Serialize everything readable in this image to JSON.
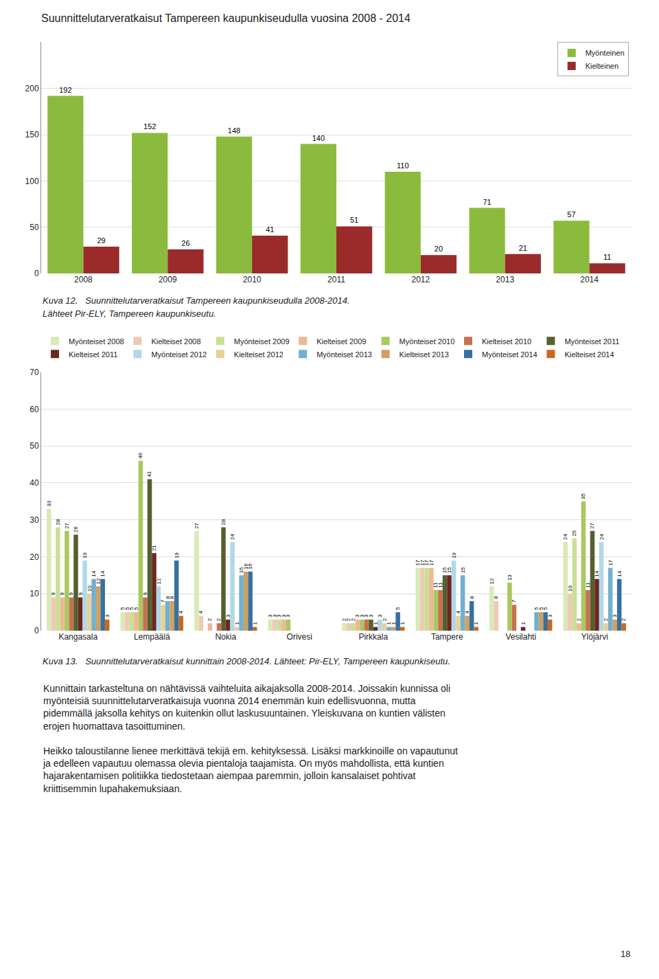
{
  "chart_data": [
    {
      "type": "bar",
      "title": "Suunnittelutarveratkaisut Tampereen kaupunkiseudulla vuosina 2008 - 2014",
      "categories": [
        "2008",
        "2009",
        "2010",
        "2011",
        "2012",
        "2013",
        "2014"
      ],
      "series": [
        {
          "name": "Myönteinen",
          "color": "#8BBB3C",
          "values": [
            192,
            152,
            148,
            140,
            110,
            71,
            57
          ]
        },
        {
          "name": "Kielteinen",
          "color": "#9B2B2B",
          "values": [
            29,
            26,
            41,
            51,
            20,
            21,
            11
          ]
        }
      ],
      "ylim": [
        0,
        250
      ],
      "yticks": [
        0,
        50,
        100,
        150,
        200
      ],
      "grid": true,
      "legend": "upper right",
      "data_labels": true,
      "annotations": [
        "Kuva 12.   Suunnittelutarveratkaisut Tampereen kaupunkiseudulla 2008-2014.",
        "Lähteet Pir-ELY, Tampereen kaupunkiseutu."
      ]
    },
    {
      "type": "bar",
      "categories": [
        "Kangasala",
        "Lempäälä",
        "Nokia",
        "Orivesi",
        "Pirkkala",
        "Tampere",
        "Vesilahti",
        "Ylöjärvi"
      ],
      "series": [
        {
          "name": "Myönteiset 2008",
          "color": "#D8EAB5",
          "values": [
            33,
            5,
            27,
            3,
            2,
            17,
            12,
            24
          ],
          "value_labels": [
            "33",
            "5",
            "27",
            "3",
            "2",
            "17",
            "12",
            "24"
          ]
        },
        {
          "name": "Kielteiset 2008",
          "color": "#F0C8B5",
          "values": [
            9,
            5,
            4,
            3,
            2,
            17,
            8,
            10
          ],
          "value_labels": [
            "9",
            "5",
            "4",
            "3",
            "2",
            "17",
            "8",
            "10"
          ]
        },
        {
          "name": "Myönteiset 2009",
          "color": "#C8E095",
          "values": [
            28,
            5,
            0,
            3,
            2,
            17,
            0,
            25
          ],
          "value_labels": [
            "28",
            "5",
            null,
            "3",
            "2",
            "17",
            null,
            "25"
          ]
        },
        {
          "name": "Kielteiset 2009",
          "color": "#EEB895",
          "values": [
            9,
            5,
            2,
            3,
            3,
            17,
            0,
            2
          ],
          "value_labels": [
            "9",
            "5",
            "2",
            "3",
            "3",
            "17",
            null,
            "2"
          ]
        },
        {
          "name": "Myönteiset 2010",
          "color": "#A8C860",
          "values": [
            27,
            46,
            0,
            3,
            3,
            11,
            13,
            35
          ],
          "value_labels": [
            "27",
            "46",
            null,
            "3",
            "3",
            "11",
            "13",
            "35"
          ]
        },
        {
          "name": "Kielteiset 2010",
          "color": "#C87050",
          "values": [
            9,
            9,
            2,
            0,
            3,
            11,
            7,
            11
          ],
          "value_labels": [
            "9",
            "9",
            "2",
            null,
            "3",
            "11",
            "7",
            "11"
          ]
        },
        {
          "name": "Myönteiset 2011",
          "color": "#556030",
          "values": [
            26,
            41,
            28,
            0,
            3,
            15,
            0,
            27
          ],
          "value_labels": [
            "26",
            "41",
            "28",
            null,
            "3",
            "15",
            null,
            "27"
          ]
        },
        {
          "name": "Kielteiset 2011",
          "color": "#6B2820",
          "values": [
            9,
            21,
            3,
            0,
            1,
            15,
            1,
            14
          ],
          "value_labels": [
            "9",
            "21",
            "3",
            null,
            "1",
            "15",
            "1",
            "14"
          ]
        },
        {
          "name": "Myönteiset 2012",
          "color": "#B0D8E8",
          "values": [
            19,
            12,
            24,
            0,
            3,
            19,
            0,
            24
          ],
          "value_labels": [
            "19",
            "12",
            "24",
            null,
            "3",
            "19",
            null,
            "24"
          ]
        },
        {
          "name": "Kielteiset 2012",
          "color": "#E8D098",
          "values": [
            10,
            7,
            1,
            0,
            2,
            4,
            0,
            2
          ],
          "value_labels": [
            "10",
            "7",
            "1",
            null,
            "2",
            "4",
            null,
            "2"
          ]
        },
        {
          "name": "Myönteiset 2013",
          "color": "#70B0D0",
          "values": [
            14,
            8,
            15,
            0,
            1,
            15,
            5,
            17
          ],
          "value_labels": [
            "14",
            "8",
            "15",
            null,
            "1",
            "15",
            "5",
            "17"
          ]
        },
        {
          "name": "Kielteiset 2013",
          "color": "#D0A060",
          "values": [
            12,
            8,
            16,
            0,
            1,
            4,
            5,
            3
          ],
          "value_labels": [
            "12",
            "8",
            "16",
            null,
            "1",
            "4",
            "5",
            "3"
          ]
        },
        {
          "name": "Myönteiset 2014",
          "color": "#3870A0",
          "values": [
            14,
            19,
            16,
            0,
            5,
            8,
            5,
            14
          ],
          "value_labels": [
            "14",
            "19",
            "16",
            null,
            "5",
            "8",
            "5",
            "14"
          ]
        },
        {
          "name": "Kielteiset 2014",
          "color": "#C86820",
          "values": [
            3,
            4,
            1,
            0,
            1,
            1,
            3,
            2
          ],
          "value_labels": [
            "3",
            "4",
            "1",
            null,
            "1",
            "1",
            "3",
            "2"
          ]
        }
      ],
      "ylim": [
        0,
        70
      ],
      "yticks": [
        0,
        10,
        20,
        30,
        40,
        50,
        60,
        70
      ],
      "grid": true,
      "legend": "top",
      "data_labels": true,
      "annotations": [
        "Kuva 13.   Suunnittelutarveratkaisut kunnittain 2008-2014. Lähteet: Pir-ELY, Tampereen kaupunkiseutu.",
        "Kunnittain tarkasteltuna on nähtävissä vaihteluita aikajaksolla 2008-2014. Joissakin kunnissa oli\nmyönteisiä suunnittelutarveratkaisuja vuonna 2014 enemmän kuin edellisvuonna, mutta\npidemmällä jaksolla kehitys on kuitenkin ollut laskusuuntainen. Yleiskuvana on kuntien välisten\nerojen huomattava tasoittuminen.\n\nHeikko taloustilanne lienee merkittävä tekijä em. kehityksessä. Lisäksi markkinoille on vapautunut\nja edelleen vapautuu olemassa olevia pientaloja taajamista. On myös mahdollista, että kuntien\nhajarakentamisen politiikka tiedostetaan aiempaa paremmin, jolloin kansalaiset pohtivat\nkriittisemmin lupahakemuksiaan.",
        "18"
      ]
    }
  ]
}
